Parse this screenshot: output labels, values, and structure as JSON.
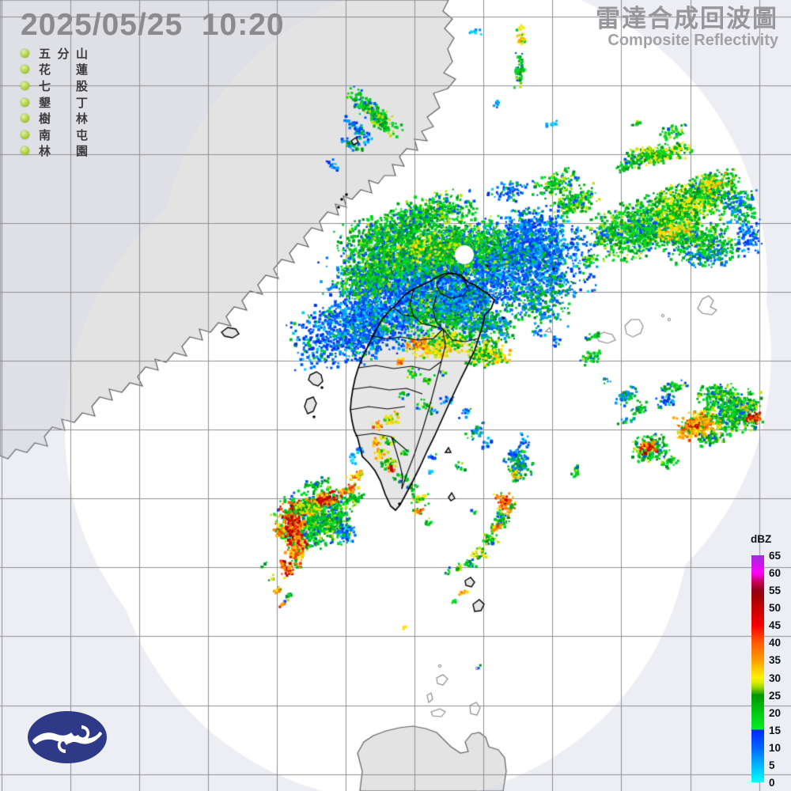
{
  "header": {
    "timestamp": "2025/05/25  10:20",
    "title_zh": "雷達合成回波圖",
    "title_en": "Composite Reflectivity"
  },
  "stations": {
    "names": [
      "五分山",
      "花蓮",
      "七股",
      "墾丁",
      "樹林",
      "南屯",
      "林園"
    ],
    "dot_color": "#a9cc3d"
  },
  "colorbar": {
    "unit": "dBZ",
    "ticks": [
      65,
      60,
      55,
      50,
      45,
      40,
      35,
      30,
      25,
      20,
      15,
      10,
      5,
      0
    ],
    "gradient_stops": [
      [
        0,
        "#9b2fd6"
      ],
      [
        7.7,
        "#ff00ff"
      ],
      [
        12,
        "#c40050"
      ],
      [
        15.4,
        "#8f0018"
      ],
      [
        19,
        "#a60000"
      ],
      [
        23.1,
        "#c60000"
      ],
      [
        30.8,
        "#f40000"
      ],
      [
        38.5,
        "#ff5a00"
      ],
      [
        46.2,
        "#ff9b00"
      ],
      [
        50,
        "#ffc800"
      ],
      [
        53.8,
        "#fff000"
      ],
      [
        56,
        "#d8ee00"
      ],
      [
        58.5,
        "#8cd200"
      ],
      [
        60.7,
        "#2fa800"
      ],
      [
        61.5,
        "#009600"
      ],
      [
        69.2,
        "#00c814"
      ],
      [
        76.6,
        "#00ee22"
      ],
      [
        77,
        "#0028ff"
      ],
      [
        84.6,
        "#0064ff"
      ],
      [
        92.3,
        "#00b4ff"
      ],
      [
        100,
        "#00ffff"
      ]
    ]
  },
  "logo": {
    "color": "#2e3a87"
  },
  "map_colors": {
    "outside_sea": "#eceef3",
    "inside_sea": "#ffffff",
    "land": "#e3e3e4",
    "taiwan_land": "#e6e6e6",
    "grid": "#8f8f93",
    "coast_stroke": "#5f5f66",
    "border_stroke": "#000000"
  },
  "radar_echoes": {
    "palettes": {
      "B": [
        "#0033f0",
        "#0033f0",
        "#0055ff",
        "#0055ff",
        "#0078ff",
        "#00a0ff",
        "#00cfff",
        "#00c41e"
      ],
      "C": [
        "#00d8ff",
        "#00b4ff",
        "#40e4ff",
        "#0090ff"
      ],
      "G": [
        "#00c420",
        "#00c420",
        "#00d81e",
        "#00a818",
        "#00911a",
        "#00e02a",
        "#0050ff",
        "#b8e400"
      ],
      "GB": [
        "#00c420",
        "#0055ff",
        "#00d81e",
        "#0078ff",
        "#00a0ff",
        "#00911a"
      ],
      "GY": [
        "#00c420",
        "#00d81e",
        "#ffe400",
        "#c8e400",
        "#00a818",
        "#ffe400",
        "#00911a"
      ],
      "Y": [
        "#ffe400",
        "#ffe400",
        "#ffc800",
        "#c8e400",
        "#ff9b00",
        "#00c420"
      ],
      "O": [
        "#ff9b00",
        "#ff7800",
        "#ffc800",
        "#ffe400",
        "#f03c00",
        "#00b41e"
      ],
      "R": [
        "#e60000",
        "#c80000",
        "#ff5000",
        "#ff9b00",
        "#a00000",
        "#ffd000"
      ]
    },
    "blobs": [
      [
        "B",
        455,
        415,
        95,
        46,
        -15,
        0.5
      ],
      [
        "B",
        520,
        355,
        118,
        58,
        -10,
        0.55
      ],
      [
        "B",
        640,
        330,
        115,
        55,
        -5,
        0.55
      ],
      [
        "B",
        672,
        300,
        42,
        45,
        0,
        0.5
      ],
      [
        "G",
        490,
        300,
        68,
        36,
        -15,
        0.65
      ],
      [
        "G",
        575,
        315,
        78,
        38,
        -10,
        0.65
      ],
      [
        "G",
        545,
        268,
        58,
        26,
        -15,
        0.5
      ],
      [
        "G",
        475,
        345,
        55,
        28,
        -18,
        0.55
      ],
      [
        "GY",
        540,
        312,
        48,
        20,
        -10,
        0.35
      ],
      [
        "G",
        565,
        390,
        58,
        33,
        -8,
        0.55
      ],
      [
        "B",
        580,
        380,
        45,
        24,
        -5,
        0.5
      ],
      [
        "GB",
        612,
        410,
        40,
        28,
        0,
        0.45
      ],
      [
        "GB",
        680,
        380,
        48,
        33,
        0,
        0.35
      ],
      [
        "B",
        640,
        240,
        28,
        14,
        0,
        0.3
      ],
      [
        "G",
        700,
        230,
        33,
        17,
        -20,
        0.4
      ],
      [
        "G",
        725,
        255,
        33,
        18,
        -25,
        0.5
      ],
      [
        "GB",
        765,
        295,
        16,
        11,
        -15,
        0.5
      ],
      [
        "G",
        745,
        327,
        13,
        7,
        -15,
        0.5
      ],
      [
        "GB",
        700,
        350,
        12,
        8,
        -15,
        0.4
      ],
      [
        "B",
        715,
        310,
        10,
        6,
        0,
        0.3
      ],
      [
        "G",
        815,
        285,
        72,
        40,
        -18,
        0.65
      ],
      [
        "GY",
        868,
        255,
        52,
        30,
        -20,
        0.6
      ],
      [
        "G",
        900,
        235,
        38,
        24,
        -20,
        0.5
      ],
      [
        "GB",
        930,
        258,
        28,
        24,
        0,
        0.45
      ],
      [
        "G",
        882,
        302,
        45,
        24,
        -15,
        0.55
      ],
      [
        "Y",
        850,
        290,
        28,
        13,
        -15,
        0.35
      ],
      [
        "Y",
        900,
        230,
        24,
        12,
        -20,
        0.3
      ],
      [
        "B",
        945,
        300,
        18,
        24,
        0,
        0.4
      ],
      [
        "GB",
        900,
        320,
        40,
        18,
        -10,
        0.4
      ],
      [
        "G",
        850,
        165,
        20,
        9,
        -15,
        0.45
      ],
      [
        "G",
        803,
        155,
        8,
        5,
        0,
        0.4
      ],
      [
        "GY",
        830,
        193,
        46,
        13,
        -10,
        0.7
      ],
      [
        "G",
        795,
        206,
        24,
        9,
        -20,
        0.55
      ],
      [
        "G",
        470,
        140,
        46,
        13,
        42,
        0.65
      ],
      [
        "B",
        452,
        163,
        28,
        9,
        45,
        0.5
      ],
      [
        "GB",
        444,
        182,
        16,
        7,
        30,
        0.5
      ],
      [
        "B",
        420,
        207,
        11,
        6,
        40,
        0.4
      ],
      [
        "Y",
        657,
        45,
        7,
        16,
        0,
        0.55
      ],
      [
        "G",
        655,
        88,
        7,
        28,
        3,
        0.5
      ],
      [
        "C",
        600,
        38,
        9,
        5,
        0,
        0.4
      ],
      [
        "B",
        627,
        128,
        5,
        9,
        0,
        0.35
      ],
      [
        "C",
        697,
        156,
        11,
        5,
        -20,
        0.45
      ],
      [
        "G",
        745,
        450,
        16,
        9,
        -15,
        0.4
      ],
      [
        "GB",
        790,
        500,
        20,
        11,
        -20,
        0.4
      ],
      [
        "G",
        808,
        515,
        13,
        8,
        -20,
        0.5
      ],
      [
        "B",
        762,
        480,
        9,
        5,
        0,
        0.3
      ],
      [
        "G",
        851,
        488,
        20,
        8,
        -10,
        0.5
      ],
      [
        "B",
        700,
        430,
        11,
        7,
        0,
        0.3
      ],
      [
        "B",
        678,
        418,
        10,
        7,
        0,
        0.35
      ],
      [
        "G",
        748,
        425,
        10,
        5,
        -10,
        0.35
      ],
      [
        "G",
        925,
        520,
        40,
        28,
        -10,
        0.75
      ],
      [
        "R",
        952,
        527,
        11,
        9,
        0,
        0.75
      ],
      [
        "Y",
        941,
        516,
        9,
        6,
        0,
        0.5
      ],
      [
        "Y",
        882,
        537,
        32,
        20,
        -10,
        0.5
      ],
      [
        "O",
        880,
        537,
        24,
        16,
        -10,
        0.75
      ],
      [
        "R",
        876,
        535,
        10,
        7,
        0,
        0.7
      ],
      [
        "G",
        905,
        495,
        28,
        14,
        -15,
        0.5
      ],
      [
        "B",
        843,
        505,
        16,
        8,
        -15,
        0.45
      ],
      [
        "G",
        820,
        565,
        25,
        19,
        -10,
        0.7
      ],
      [
        "R",
        817,
        564,
        12,
        11,
        0,
        0.75
      ],
      [
        "G",
        843,
        583,
        14,
        8,
        -20,
        0.5
      ],
      [
        "G",
        900,
        553,
        24,
        10,
        -10,
        0.5
      ],
      [
        "GB",
        790,
        530,
        12,
        6,
        -15,
        0.35
      ],
      [
        "Y",
        548,
        437,
        38,
        17,
        -5,
        0.55
      ],
      [
        "O",
        527,
        432,
        16,
        11,
        0,
        0.5
      ],
      [
        "GY",
        573,
        428,
        19,
        13,
        0,
        0.5
      ],
      [
        "GY",
        612,
        445,
        28,
        19,
        -10,
        0.55
      ],
      [
        "Y",
        628,
        450,
        16,
        11,
        0,
        0.4
      ],
      [
        "O",
        505,
        455,
        8,
        6,
        0,
        0.65
      ],
      [
        "G",
        520,
        470,
        11,
        7,
        0,
        0.4
      ],
      [
        "G",
        538,
        480,
        10,
        7,
        0,
        0.35
      ],
      [
        "G",
        510,
        500,
        9,
        6,
        0,
        0.35
      ],
      [
        "G",
        533,
        510,
        11,
        7,
        0,
        0.4
      ],
      [
        "GB",
        546,
        520,
        9,
        6,
        0,
        0.35
      ],
      [
        "B",
        562,
        505,
        11,
        6,
        0,
        0.3
      ],
      [
        "B",
        586,
        520,
        13,
        7,
        -20,
        0.35
      ],
      [
        "GB",
        600,
        545,
        15,
        8,
        -30,
        0.4
      ],
      [
        "B",
        613,
        560,
        11,
        6,
        -30,
        0.35
      ],
      [
        "Y",
        494,
        528,
        13,
        10,
        0,
        0.55
      ],
      [
        "O",
        475,
        536,
        9,
        7,
        0,
        0.55
      ],
      [
        "GY",
        486,
        556,
        11,
        8,
        0,
        0.5
      ],
      [
        "O",
        472,
        557,
        8,
        6,
        0,
        0.5
      ],
      [
        "Y",
        480,
        572,
        10,
        7,
        0,
        0.5
      ],
      [
        "GY",
        489,
        585,
        14,
        10,
        0,
        0.55
      ],
      [
        "R",
        494,
        590,
        6,
        5,
        0,
        0.75
      ],
      [
        "G",
        505,
        602,
        11,
        7,
        0,
        0.45
      ],
      [
        "G",
        520,
        615,
        9,
        6,
        0,
        0.4
      ],
      [
        "G",
        509,
        572,
        8,
        5,
        0,
        0.4
      ],
      [
        "G",
        580,
        588,
        9,
        5,
        0,
        0.35
      ],
      [
        "GY",
        530,
        630,
        13,
        8,
        0,
        0.5
      ],
      [
        "O",
        527,
        645,
        8,
        6,
        0,
        0.55
      ],
      [
        "G",
        540,
        660,
        9,
        6,
        0,
        0.4
      ],
      [
        "G",
        598,
        645,
        6,
        4,
        0,
        0.4
      ],
      [
        "G",
        495,
        415,
        13,
        7,
        0,
        0.3
      ],
      [
        "G",
        555,
        470,
        9,
        5,
        0,
        0.3
      ],
      [
        "G",
        395,
        655,
        54,
        40,
        -10,
        0.7
      ],
      [
        "R",
        370,
        668,
        16,
        38,
        -8,
        0.7
      ],
      [
        "R",
        408,
        631,
        26,
        10,
        -15,
        0.7
      ],
      [
        "Y",
        390,
        644,
        16,
        9,
        -10,
        0.6
      ],
      [
        "GY",
        382,
        640,
        19,
        11,
        0,
        0.45
      ],
      [
        "G",
        424,
        660,
        20,
        15,
        0,
        0.55
      ],
      [
        "B",
        436,
        673,
        12,
        16,
        0,
        0.45
      ],
      [
        "O",
        372,
        700,
        11,
        18,
        -10,
        0.7
      ],
      [
        "R",
        361,
        717,
        9,
        13,
        -15,
        0.65
      ],
      [
        "O",
        352,
        670,
        9,
        11,
        0,
        0.55
      ],
      [
        "G",
        398,
        610,
        19,
        8,
        -20,
        0.5
      ],
      [
        "O",
        448,
        600,
        13,
        6,
        -15,
        0.55
      ],
      [
        "Y",
        452,
        597,
        7,
        4,
        -15,
        0.5
      ],
      [
        "O",
        443,
        617,
        13,
        9,
        -20,
        0.55
      ],
      [
        "G",
        446,
        630,
        16,
        11,
        0,
        0.5
      ],
      [
        "C",
        445,
        578,
        7,
        9,
        0,
        0.4
      ],
      [
        "B",
        452,
        566,
        6,
        7,
        0,
        0.35
      ],
      [
        "O",
        350,
        745,
        11,
        4,
        -40,
        0.65
      ],
      [
        "G",
        363,
        752,
        9,
        4,
        -40,
        0.55
      ],
      [
        "R",
        355,
        762,
        7,
        3,
        -40,
        0.5
      ],
      [
        "GY",
        342,
        731,
        7,
        4,
        -40,
        0.45
      ],
      [
        "G",
        333,
        712,
        6,
        3,
        -40,
        0.4
      ],
      [
        "GB",
        655,
        588,
        19,
        20,
        -15,
        0.55
      ],
      [
        "Y",
        654,
        600,
        11,
        9,
        0,
        0.5
      ],
      [
        "B",
        650,
        573,
        10,
        11,
        0,
        0.5
      ],
      [
        "B",
        662,
        557,
        8,
        11,
        0,
        0.4
      ],
      [
        "O",
        637,
        635,
        13,
        16,
        -10,
        0.65
      ],
      [
        "R",
        636,
        632,
        7,
        7,
        0,
        0.7
      ],
      [
        "G",
        633,
        655,
        11,
        13,
        -10,
        0.55
      ],
      [
        "O",
        625,
        666,
        9,
        7,
        0,
        0.55
      ],
      [
        "G",
        618,
        681,
        11,
        11,
        -15,
        0.5
      ],
      [
        "GY",
        604,
        699,
        11,
        9,
        -20,
        0.5
      ],
      [
        "G",
        592,
        711,
        9,
        7,
        -20,
        0.5
      ],
      [
        "GY",
        578,
        717,
        9,
        6,
        -20,
        0.45
      ],
      [
        "G",
        566,
        721,
        7,
        5,
        -20,
        0.4
      ],
      [
        "O",
        585,
        747,
        7,
        4,
        -30,
        0.6
      ],
      [
        "G",
        574,
        759,
        5,
        3,
        -30,
        0.5
      ],
      [
        "G",
        726,
        592,
        6,
        15,
        5,
        0.5
      ],
      [
        "B",
        545,
        576,
        7,
        5,
        -20,
        0.4
      ],
      [
        "C",
        541,
        594,
        5,
        4,
        0,
        0.4
      ],
      [
        "Y",
        510,
        792,
        4,
        3,
        0,
        0.55
      ],
      [
        "G",
        606,
        841,
        3,
        3,
        0,
        0.5
      ],
      [
        "G",
        751,
        424,
        9,
        5,
        -15,
        0.35
      ]
    ]
  }
}
